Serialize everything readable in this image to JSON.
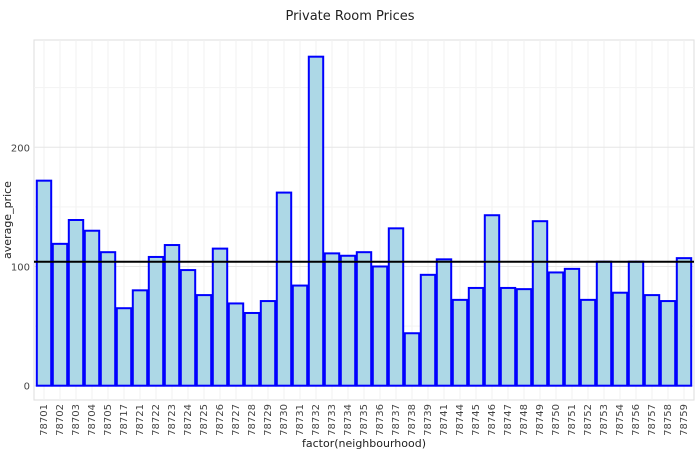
{
  "chart_data": {
    "type": "bar",
    "title": "Private Room Prices",
    "xlabel": "factor(neighbourhood)",
    "ylabel": "average_price",
    "categories": [
      "78701",
      "78702",
      "78703",
      "78704",
      "78705",
      "78717",
      "78721",
      "78722",
      "78723",
      "78724",
      "78725",
      "78726",
      "78727",
      "78728",
      "78729",
      "78730",
      "78731",
      "78732",
      "78733",
      "78734",
      "78735",
      "78736",
      "78737",
      "78738",
      "78739",
      "78741",
      "78744",
      "78745",
      "78746",
      "78747",
      "78748",
      "78749",
      "78750",
      "78751",
      "78752",
      "78753",
      "78754",
      "78756",
      "78757",
      "78758",
      "78759"
    ],
    "values": [
      172,
      119,
      139,
      130,
      112,
      65,
      80,
      108,
      118,
      97,
      76,
      115,
      69,
      61,
      71,
      162,
      84,
      276,
      111,
      109,
      112,
      100,
      132,
      44,
      93,
      106,
      72,
      82,
      143,
      82,
      81,
      138,
      95,
      98,
      72,
      104,
      78,
      104,
      76,
      71,
      107
    ],
    "reference_line": 104,
    "yticks": [
      0,
      100,
      200
    ],
    "ylim": [
      -12,
      290
    ],
    "grid": true,
    "bar_fill": "#add8e6",
    "bar_stroke": "#0000ff",
    "line_color": "#000000"
  }
}
